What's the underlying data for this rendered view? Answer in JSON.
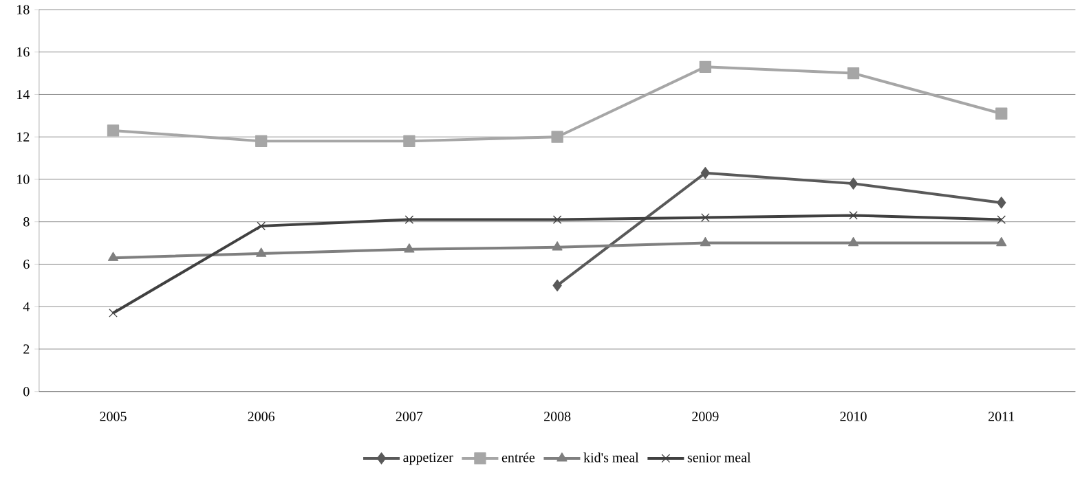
{
  "chart_data": {
    "type": "line",
    "categories": [
      "2005",
      "2006",
      "2007",
      "2008",
      "2009",
      "2010",
      "2011"
    ],
    "ylim": [
      0,
      18
    ],
    "yticks": [
      0,
      2,
      4,
      6,
      8,
      10,
      12,
      14,
      16,
      18
    ],
    "grid": "y",
    "legend": "bottom",
    "line_style": "solid",
    "series": [
      {
        "name": "appetizer",
        "color": "#595959",
        "marker": "diamond",
        "values": [
          null,
          null,
          null,
          5.0,
          10.3,
          9.8,
          8.9
        ]
      },
      {
        "name": "entrée",
        "color": "#a6a6a6",
        "marker": "square",
        "values": [
          12.3,
          11.8,
          11.8,
          12.0,
          15.3,
          15.0,
          13.1
        ]
      },
      {
        "name": "kid's meal",
        "color": "#7f7f7f",
        "marker": "triangle",
        "values": [
          6.3,
          6.5,
          6.7,
          6.8,
          7.0,
          7.0,
          7.0
        ]
      },
      {
        "name": "senior meal",
        "color": "#404040",
        "marker": "cross",
        "values": [
          3.7,
          7.8,
          8.1,
          8.1,
          8.2,
          8.3,
          8.1
        ]
      }
    ]
  }
}
